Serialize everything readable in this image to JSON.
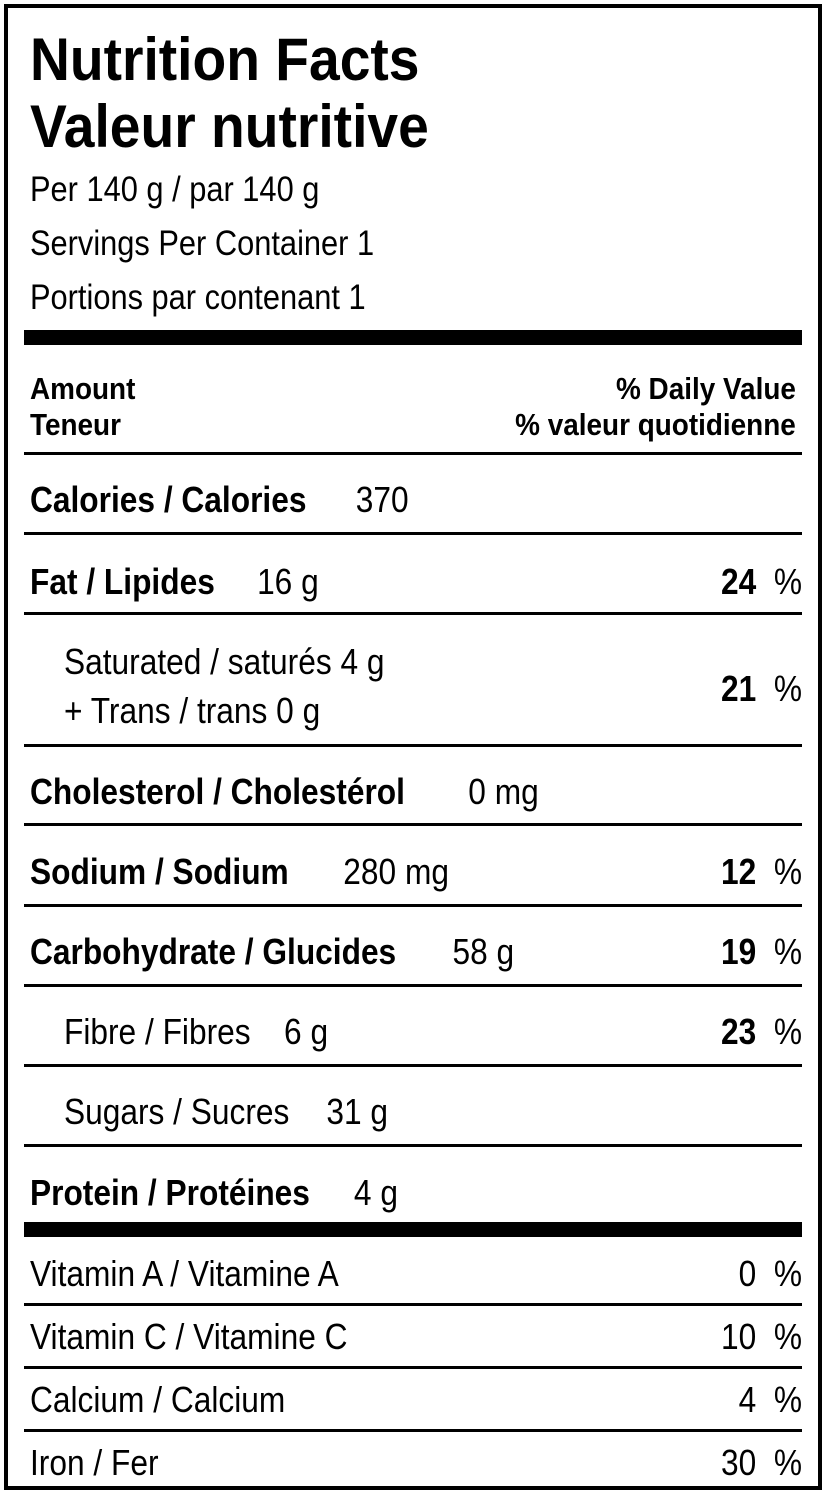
{
  "title_en": "Nutrition Facts",
  "title_fr": "Valeur nutritive",
  "serving_size": "Per 140  g / par 140  g",
  "servings_en": "Servings Per Container 1",
  "servings_fr": "Portions par contenant 1",
  "header": {
    "amount_en": "Amount",
    "amount_fr": "Teneur",
    "dv_en": "% Daily Value",
    "dv_fr": "% valeur quotidienne"
  },
  "calories": {
    "label": "Calories / Calories",
    "amount": "370"
  },
  "fat": {
    "label": "Fat / Lipides",
    "amount": "16 g",
    "pct": "24",
    "unit": "%"
  },
  "saturated": {
    "label": "Saturated / saturés 4 g",
    "trans": "+ Trans / trans 0 g",
    "pct": "21",
    "unit": "%"
  },
  "cholesterol": {
    "label": "Cholesterol / Cholestérol",
    "amount": "0 mg"
  },
  "sodium": {
    "label": "Sodium / Sodium",
    "amount": "280 mg",
    "pct": "12",
    "unit": "%"
  },
  "carbohydrate": {
    "label": "Carbohydrate / Glucides",
    "amount": "58 g",
    "pct": "19",
    "unit": "%"
  },
  "fibre": {
    "label": "Fibre / Fibres",
    "amount": "6 g",
    "pct": "23",
    "unit": "%"
  },
  "sugars": {
    "label": "Sugars / Sucres",
    "amount": "31 g"
  },
  "protein": {
    "label": "Protein / Protéines",
    "amount": "4 g"
  },
  "vitamins": [
    {
      "label": "Vitamin A / Vitamine A",
      "pct": "0",
      "unit": "%"
    },
    {
      "label": "Vitamin C / Vitamine C",
      "pct": "10",
      "unit": "%"
    },
    {
      "label": "Calcium / Calcium",
      "pct": "4",
      "unit": "%"
    },
    {
      "label": "Iron / Fer",
      "pct": "30",
      "unit": "%"
    }
  ]
}
